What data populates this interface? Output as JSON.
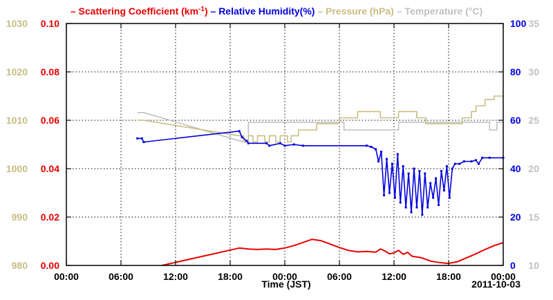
{
  "chart_data": {
    "type": "line",
    "xlabel": "Time (JST)",
    "date_label": "2011-10-03",
    "x_ticks": [
      "00:00",
      "06:00",
      "12:00",
      "18:00",
      "00:00",
      "06:00",
      "12:00",
      "18:00",
      "00:00"
    ],
    "x_range_hours": [
      0,
      48
    ],
    "grid": true,
    "legend": {
      "placement": "top",
      "separator": "–",
      "entries": [
        {
          "key": "scat",
          "pre": "Scattering Coefficient (km",
          "sup": "-1",
          "post": ")"
        },
        {
          "key": "rh",
          "text": "Relative Humidity(%)"
        },
        {
          "key": "pres",
          "text": "Pressure (hPa)"
        },
        {
          "key": "temp",
          "text": "Temperature (°C)"
        }
      ]
    },
    "axes": {
      "scat": {
        "side": "left-inner",
        "range": [
          0,
          0.1
        ],
        "ticks": [
          "0.00",
          "0.02",
          "0.04",
          "0.06",
          "0.08",
          "0.10"
        ],
        "color": "#e80000"
      },
      "pres": {
        "side": "left-outer",
        "range": [
          980,
          1030
        ],
        "ticks": [
          "980",
          "990",
          "1000",
          "1010",
          "1020",
          "1030"
        ],
        "color": "#c8bd82"
      },
      "rh": {
        "side": "right-inner",
        "range": [
          0,
          100
        ],
        "ticks": [
          "0",
          "20",
          "40",
          "60",
          "80",
          "100"
        ],
        "color": "#0000dd"
      },
      "temp": {
        "side": "right-outer",
        "range": [
          10,
          35
        ],
        "ticks": [
          "10",
          "15",
          "20",
          "25",
          "30",
          "35"
        ],
        "color": "#c0c0c0"
      }
    },
    "series": [
      {
        "key": "temp",
        "color": "#c0c0c0",
        "step": true,
        "points": [
          [
            7.8,
            25.8
          ],
          [
            8.5,
            25.8
          ],
          [
            19.3,
            22.8
          ],
          [
            20.0,
            22.8
          ],
          [
            20.0,
            24.8
          ],
          [
            30.5,
            24.8
          ],
          [
            30.5,
            24.0
          ],
          [
            36.5,
            24.0
          ],
          [
            36.5,
            24.8
          ],
          [
            46.5,
            24.8
          ],
          [
            46.5,
            24.0
          ],
          [
            47.3,
            24.0
          ],
          [
            47.3,
            24.8
          ],
          [
            48.0,
            24.8
          ]
        ]
      },
      {
        "key": "pres",
        "color": "#c8bd82",
        "step": true,
        "points": [
          [
            7.8,
            1010
          ],
          [
            8.5,
            1010
          ],
          [
            19.0,
            1006.8
          ],
          [
            19.5,
            1006.8
          ],
          [
            19.5,
            1005.5
          ],
          [
            20.0,
            1005.5
          ],
          [
            20.0,
            1006.8
          ],
          [
            20.5,
            1006.8
          ],
          [
            20.5,
            1005.5
          ],
          [
            21.0,
            1005.5
          ],
          [
            21.0,
            1006.8
          ],
          [
            21.8,
            1006.8
          ],
          [
            21.8,
            1005.5
          ],
          [
            22.3,
            1005.5
          ],
          [
            22.3,
            1006.8
          ],
          [
            23.0,
            1006.8
          ],
          [
            23.0,
            1005.5
          ],
          [
            23.5,
            1005.5
          ],
          [
            23.5,
            1006.8
          ],
          [
            24.3,
            1006.8
          ],
          [
            24.3,
            1005.5
          ],
          [
            24.7,
            1005.5
          ],
          [
            24.7,
            1006.8
          ],
          [
            25.5,
            1006.8
          ],
          [
            25.5,
            1008
          ],
          [
            27.5,
            1008
          ],
          [
            27.5,
            1009.3
          ],
          [
            30.0,
            1009.3
          ],
          [
            30.0,
            1010.5
          ],
          [
            32.0,
            1010.5
          ],
          [
            32.0,
            1011.8
          ],
          [
            34.5,
            1011.8
          ],
          [
            34.5,
            1010.5
          ],
          [
            36.5,
            1010.5
          ],
          [
            36.5,
            1011.8
          ],
          [
            38.5,
            1011.8
          ],
          [
            38.5,
            1010.5
          ],
          [
            39.5,
            1010.5
          ],
          [
            39.5,
            1009.3
          ],
          [
            43.5,
            1009.3
          ],
          [
            43.5,
            1010.5
          ],
          [
            44.5,
            1010.5
          ],
          [
            44.5,
            1011.8
          ],
          [
            45.0,
            1011.8
          ],
          [
            45.0,
            1013
          ],
          [
            46.0,
            1013
          ],
          [
            46.0,
            1014.3
          ],
          [
            47.0,
            1014.3
          ],
          [
            47.0,
            1015
          ],
          [
            48.0,
            1015
          ]
        ]
      },
      {
        "key": "rh",
        "color": "#0000dd",
        "step": false,
        "markers": true,
        "points": [
          [
            7.8,
            52.5
          ],
          [
            8.3,
            52.5
          ],
          [
            8.5,
            51
          ],
          [
            19.0,
            55.5
          ],
          [
            19.3,
            53
          ],
          [
            19.8,
            51.5
          ],
          [
            20.0,
            50.5
          ],
          [
            22.0,
            50.5
          ],
          [
            22.3,
            49.5
          ],
          [
            23.5,
            50.5
          ],
          [
            24.0,
            49.5
          ],
          [
            25.0,
            50
          ],
          [
            26.0,
            49.5
          ],
          [
            33.0,
            49.5
          ],
          [
            33.5,
            49
          ],
          [
            34.0,
            48
          ],
          [
            34.3,
            43
          ],
          [
            34.6,
            47
          ],
          [
            34.9,
            29
          ],
          [
            35.2,
            44
          ],
          [
            35.5,
            30
          ],
          [
            35.8,
            42
          ],
          [
            36.1,
            28
          ],
          [
            36.4,
            46
          ],
          [
            36.7,
            26
          ],
          [
            37.0,
            41
          ],
          [
            37.3,
            24
          ],
          [
            37.6,
            38
          ],
          [
            37.9,
            22
          ],
          [
            38.2,
            40
          ],
          [
            38.5,
            24
          ],
          [
            38.8,
            39
          ],
          [
            39.1,
            21
          ],
          [
            39.4,
            38
          ],
          [
            39.7,
            24
          ],
          [
            40.0,
            34
          ],
          [
            40.3,
            28
          ],
          [
            40.6,
            36
          ],
          [
            40.9,
            25
          ],
          [
            41.2,
            39
          ],
          [
            41.5,
            31
          ],
          [
            41.8,
            41
          ],
          [
            42.1,
            28
          ],
          [
            42.4,
            40
          ],
          [
            42.7,
            42
          ],
          [
            43.2,
            42
          ],
          [
            43.7,
            43
          ],
          [
            44.5,
            43
          ],
          [
            45.0,
            43.5
          ],
          [
            45.3,
            42
          ],
          [
            45.7,
            44.5
          ],
          [
            46.5,
            44.5
          ],
          [
            48.0,
            44.5
          ]
        ]
      },
      {
        "key": "scat",
        "color": "#e80000",
        "step": false,
        "points": [
          [
            10.5,
            0
          ],
          [
            19.0,
            0.0072
          ],
          [
            20.0,
            0.0068
          ],
          [
            21.0,
            0.0066
          ],
          [
            22.0,
            0.0068
          ],
          [
            23.0,
            0.0066
          ],
          [
            24.0,
            0.0072
          ],
          [
            25.0,
            0.0082
          ],
          [
            26.0,
            0.0095
          ],
          [
            27.0,
            0.0108
          ],
          [
            28.0,
            0.0102
          ],
          [
            29.0,
            0.0088
          ],
          [
            30.0,
            0.0074
          ],
          [
            31.0,
            0.0062
          ],
          [
            32.0,
            0.0056
          ],
          [
            33.0,
            0.0058
          ],
          [
            34.0,
            0.0055
          ],
          [
            34.5,
            0.0068
          ],
          [
            35.0,
            0.006
          ],
          [
            35.5,
            0.0048
          ],
          [
            36.0,
            0.0052
          ],
          [
            36.5,
            0.0062
          ],
          [
            37.0,
            0.0046
          ],
          [
            37.5,
            0.0054
          ],
          [
            38.0,
            0.0038
          ],
          [
            39.0,
            0.0032
          ],
          [
            40.0,
            0.0018
          ],
          [
            41.0,
            0.0012
          ],
          [
            42.0,
            0.0008
          ],
          [
            43.0,
            0.0016
          ],
          [
            44.0,
            0.0032
          ],
          [
            45.0,
            0.0048
          ],
          [
            46.0,
            0.0066
          ],
          [
            47.0,
            0.0082
          ],
          [
            48.0,
            0.0094
          ]
        ]
      }
    ]
  }
}
